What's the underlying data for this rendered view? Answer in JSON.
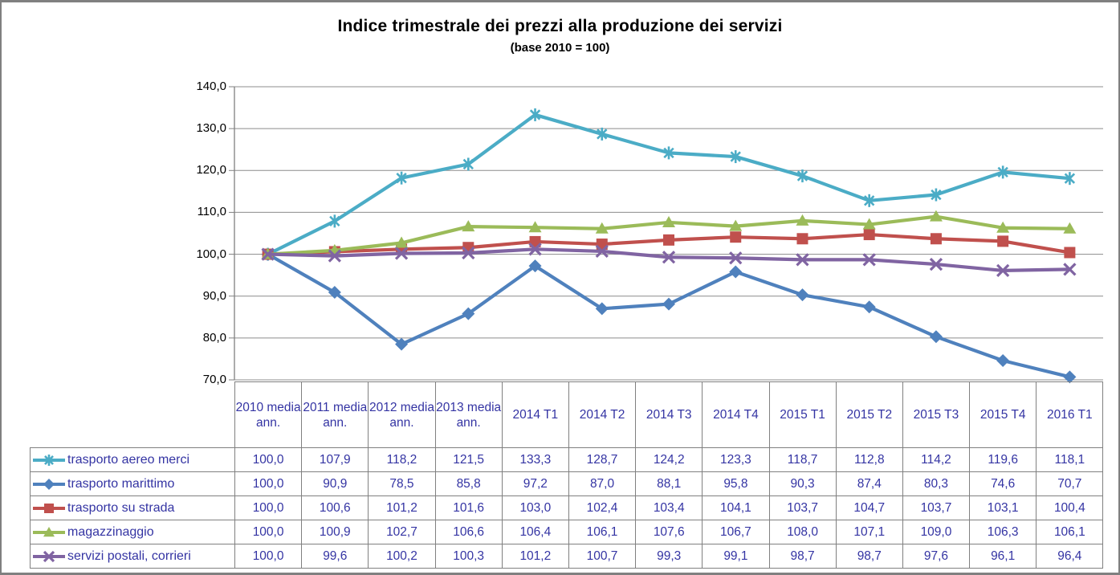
{
  "title": "Indice trimestrale dei prezzi alla produzione dei servizi",
  "subtitle": "(base 2010 = 100)",
  "y_axis": {
    "tick_labels": [
      "140,0",
      "130,0",
      "120,0",
      "110,0",
      "100,0",
      "90,0",
      "80,0",
      "70,0"
    ],
    "min": 70,
    "max": 140,
    "step": 10
  },
  "colors": {
    "gridline": "#8C8C8C",
    "axis": "#808080",
    "table_border": "#808080",
    "table_text": "#3434A3",
    "title_text": "#000000"
  },
  "chart_data": {
    "type": "line",
    "title": "Indice trimestrale dei prezzi alla produzione dei servizi",
    "subtitle": "(base 2010 = 100)",
    "xlabel": "",
    "ylabel": "",
    "ylim": [
      70,
      140
    ],
    "ytick_step": 10,
    "grid": true,
    "legend_position": "table-left",
    "decimal_separator": ",",
    "categories": [
      "2010 media ann.",
      "2011 media ann.",
      "2012 media ann.",
      "2013 media ann.",
      "2014 T1",
      "2014 T2",
      "2014 T3",
      "2014 T4",
      "2015 T1",
      "2015 T2",
      "2015 T3",
      "2015 T4",
      "2016 T1"
    ],
    "series": [
      {
        "name": "trasporto aereo merci",
        "color": "#4BACC6",
        "marker": "asterisk",
        "values": [
          100.0,
          107.9,
          118.2,
          121.5,
          133.3,
          128.7,
          124.2,
          123.3,
          118.7,
          112.8,
          114.2,
          119.6,
          118.1
        ]
      },
      {
        "name": "trasporto marittimo",
        "color": "#4F81BD",
        "marker": "diamond",
        "values": [
          100.0,
          90.9,
          78.5,
          85.8,
          97.2,
          87.0,
          88.1,
          95.8,
          90.3,
          87.4,
          80.3,
          74.6,
          70.7
        ]
      },
      {
        "name": "trasporto su strada",
        "color": "#C0504D",
        "marker": "square",
        "values": [
          100.0,
          100.6,
          101.2,
          101.6,
          103.0,
          102.4,
          103.4,
          104.1,
          103.7,
          104.7,
          103.7,
          103.1,
          100.4
        ]
      },
      {
        "name": "magazzinaggio",
        "color": "#9BBB59",
        "marker": "triangle",
        "values": [
          100.0,
          100.9,
          102.7,
          106.6,
          106.4,
          106.1,
          107.6,
          106.7,
          108.0,
          107.1,
          109.0,
          106.3,
          106.1
        ]
      },
      {
        "name": "servizi postali, corrieri",
        "color": "#8064A2",
        "marker": "x",
        "values": [
          100.0,
          99.6,
          100.2,
          100.3,
          101.2,
          100.7,
          99.3,
          99.1,
          98.7,
          98.7,
          97.6,
          96.1,
          96.4
        ]
      }
    ]
  }
}
